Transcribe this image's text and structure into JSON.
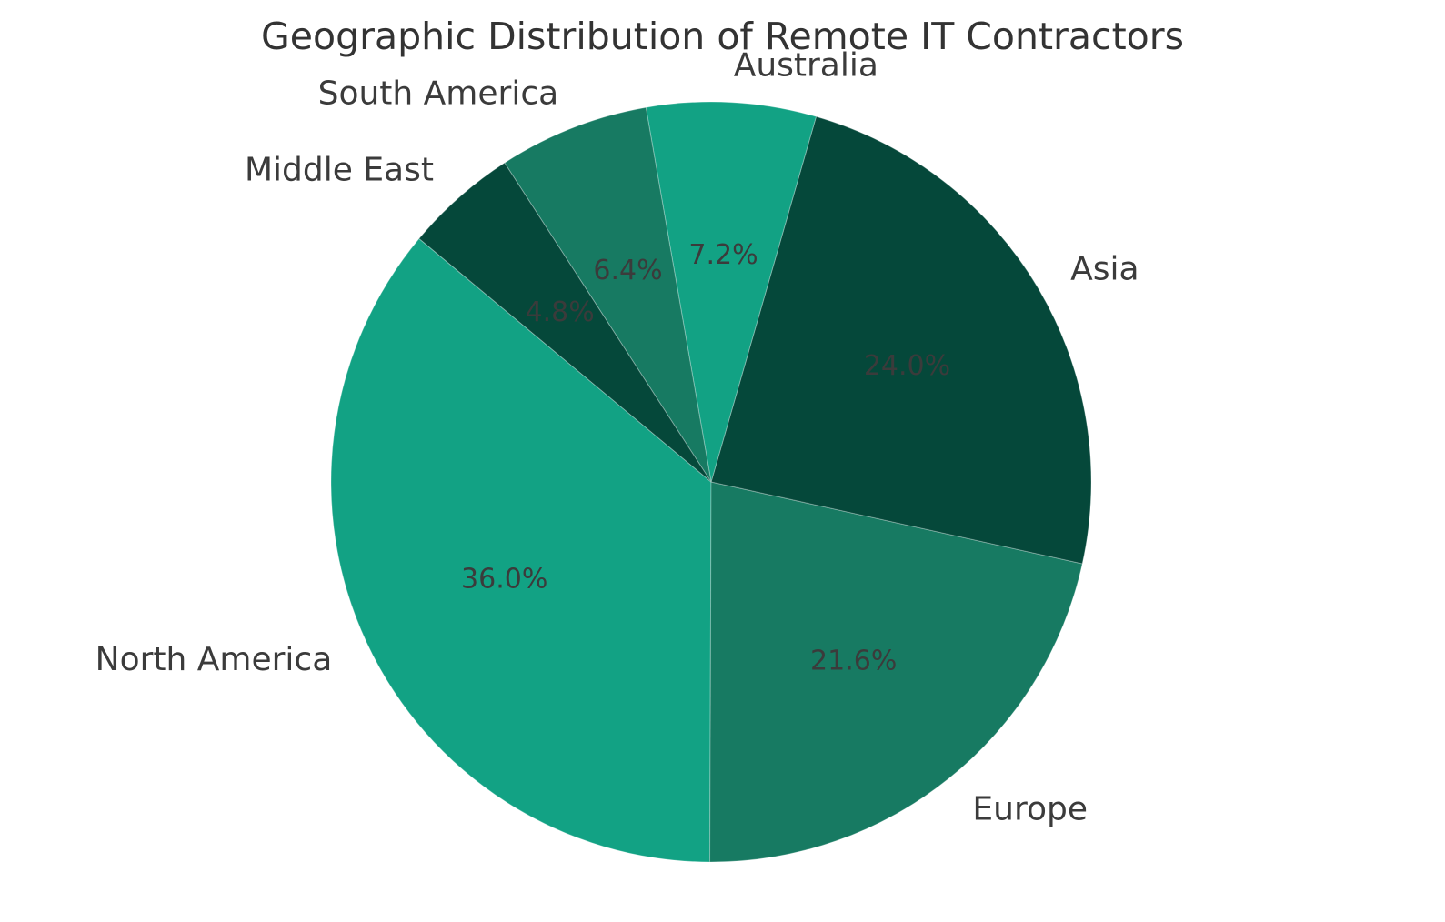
{
  "title": "Geographic Distribution of Remote IT Contractors",
  "chart_data": {
    "type": "pie",
    "title": "Geographic Distribution of Remote IT Contractors",
    "labels": [
      "North America",
      "Europe",
      "Asia",
      "Australia",
      "South America",
      "Middle East"
    ],
    "values": [
      36.0,
      21.6,
      24.0,
      7.2,
      6.4,
      4.8
    ],
    "pct_labels": [
      "36.0%",
      "21.6%",
      "24.0%",
      "7.2%",
      "6.4%",
      "4.8%"
    ],
    "colors": [
      "#12a284",
      "#177a62",
      "#05483a",
      "#12a284",
      "#177a62",
      "#05483a"
    ],
    "start_angle_deg": 140.2,
    "counterclockwise": true,
    "label_distance": 1.1,
    "pct_distance": 0.6,
    "legend": "none",
    "grid": "off",
    "slice_label_color": "#3b3b3b",
    "pct_label_color": "#3b3b3b",
    "title_color": "#333333",
    "background_color": "#ffffff"
  }
}
